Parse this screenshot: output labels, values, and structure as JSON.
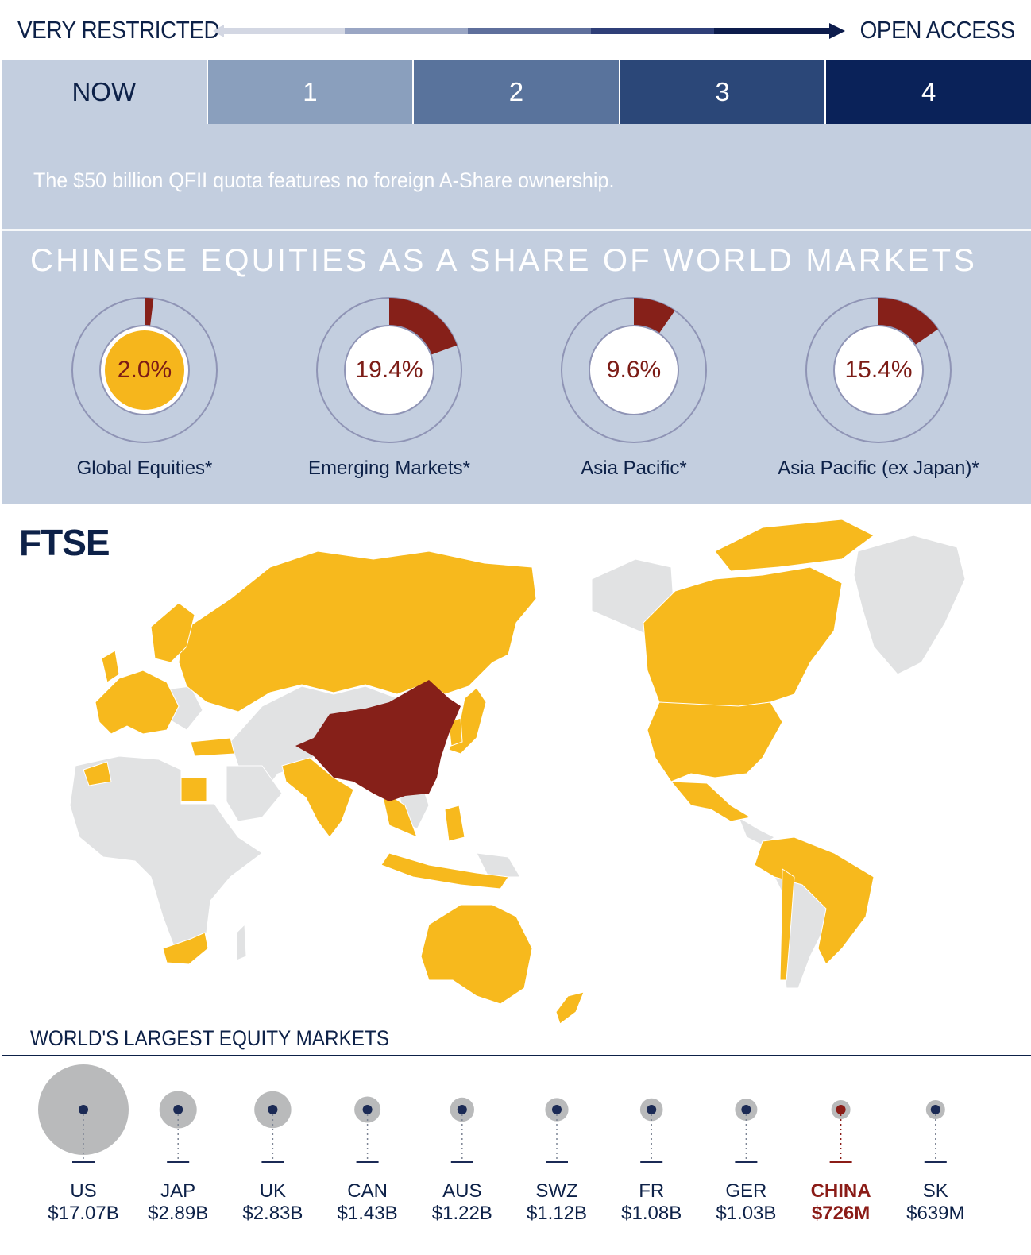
{
  "scale": {
    "left_label": "VERY RESTRICTED",
    "right_label": "OPEN ACCESS"
  },
  "tabs": [
    {
      "label": "NOW",
      "color": "#c3cedf",
      "active": true
    },
    {
      "label": "1",
      "color": "#8a9fbd",
      "active": false
    },
    {
      "label": "2",
      "color": "#59739c",
      "active": false
    },
    {
      "label": "3",
      "color": "#2b4778",
      "active": false
    },
    {
      "label": "4",
      "color": "#0a2259",
      "active": false
    }
  ],
  "panel": {
    "description": "The $50 billion QFII quota features no foreign A-Share ownership.",
    "title": "CHINESE EQUITIES AS A SHARE OF WORLD MARKETS"
  },
  "shares": [
    {
      "label": "Global Equities*",
      "value": 2.0,
      "display": "2.0%",
      "center_fill": "#f6b61c"
    },
    {
      "label": "Emerging Markets*",
      "value": 19.4,
      "display": "19.4%",
      "center_fill": "#ffffff"
    },
    {
      "label": "Asia Pacific*",
      "value": 9.6,
      "display": "9.6%",
      "center_fill": "#ffffff"
    },
    {
      "label": "Asia Pacific (ex Japan)*",
      "value": 15.4,
      "display": "15.4%",
      "center_fill": "#ffffff"
    }
  ],
  "map": {
    "logo": "FTSE",
    "colors": {
      "included": "#f7b91d",
      "china": "#862019",
      "excluded": "#e1e2e3"
    }
  },
  "chart_data": {
    "type": "bubble",
    "title": "WORLD'S LARGEST EQUITY MARKETS",
    "categories": [
      "US",
      "JAP",
      "UK",
      "CAN",
      "AUS",
      "SWZ",
      "FR",
      "GER",
      "CHINA",
      "SK"
    ],
    "values": [
      17.07,
      2.89,
      2.83,
      1.43,
      1.22,
      1.12,
      1.08,
      1.03,
      0.726,
      0.639
    ],
    "value_labels": [
      "$17.07B",
      "$2.89B",
      "$2.83B",
      "$1.43B",
      "$1.22B",
      "$1.12B",
      "$1.08B",
      "$1.03B",
      "$726M",
      "$639M"
    ],
    "highlight": "CHINA",
    "colors": {
      "bubble": "#b9babb",
      "dot": "#1b2a55",
      "highlight_dot": "#8b1c17",
      "label": "#0d2148",
      "highlight_label": "#8b1c17"
    }
  }
}
